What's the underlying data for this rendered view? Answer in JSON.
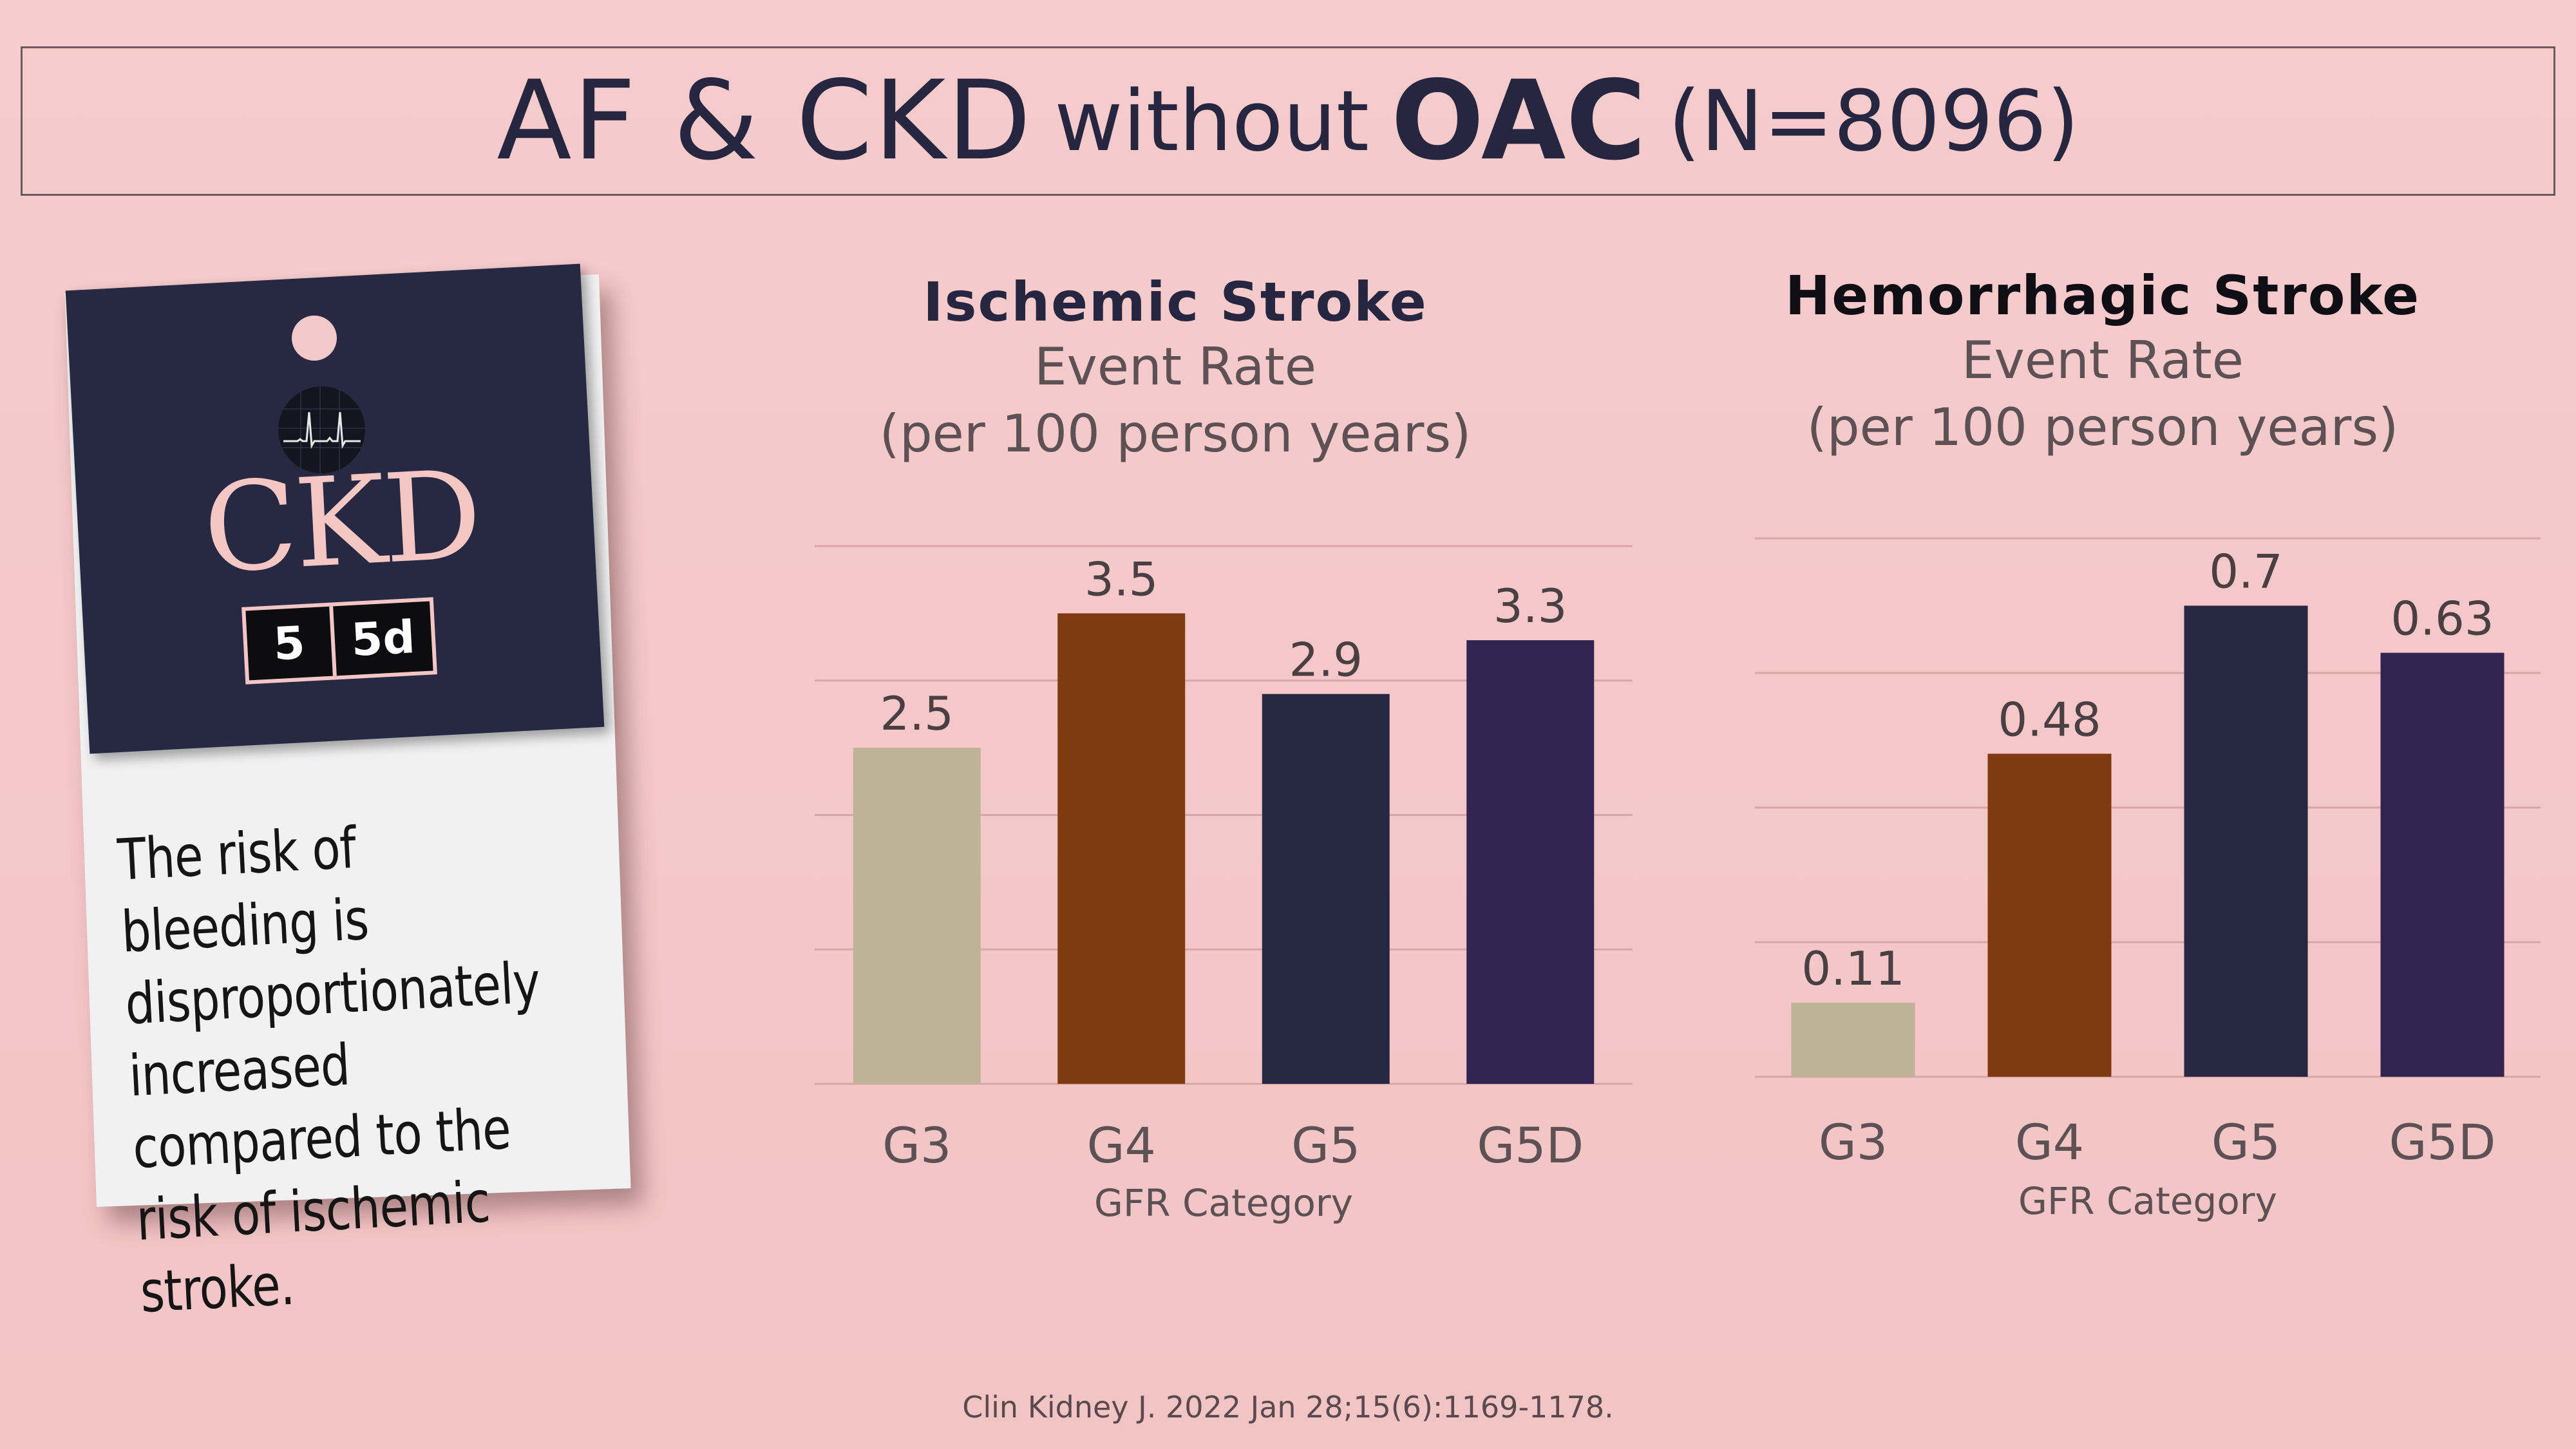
{
  "title": {
    "part1": "AF & CKD",
    "part2": "without",
    "part3": "OAC",
    "part4": "(N=8096)"
  },
  "card": {
    "label": "CKD",
    "stage_a": "5",
    "stage_b": "5d",
    "note": "The risk of bleeding is disproportionately increased compared to the risk of ischemic stroke."
  },
  "charts": [
    {
      "title": "Ischemic Stroke",
      "subtitle1": "Event Rate",
      "subtitle2": "(per 100 person years)"
    },
    {
      "title": "Hemorrhagic Stroke",
      "subtitle1": "Event Rate",
      "subtitle2": "(per 100 person years)"
    }
  ],
  "chart_data": [
    {
      "type": "bar",
      "title": "Ischemic Stroke",
      "ylabel": "Event Rate (per 100 person years)",
      "xlabel": "GFR Category",
      "categories": [
        "G3",
        "G4",
        "G5",
        "G5D"
      ],
      "values": [
        2.5,
        3.5,
        2.9,
        3.3
      ],
      "value_labels": [
        "2.5",
        "3.5",
        "2.9",
        "3.3"
      ],
      "ylim": [
        0,
        4
      ],
      "grid": true,
      "colors": [
        "#bfb397",
        "#803a0f",
        "#262841",
        "#332350"
      ]
    },
    {
      "type": "bar",
      "title": "Hemorrhagic Stroke",
      "ylabel": "Event Rate (per 100 person years)",
      "xlabel": "GFR Category",
      "categories": [
        "G3",
        "G4",
        "G5",
        "G5D"
      ],
      "values": [
        0.11,
        0.48,
        0.7,
        0.63
      ],
      "value_labels": [
        "0.11",
        "0.48",
        "0.7",
        "0.63"
      ],
      "ylim": [
        0,
        0.8
      ],
      "grid": true,
      "colors": [
        "#bfb397",
        "#803a0f",
        "#262841",
        "#332350"
      ]
    }
  ],
  "footer": {
    "citation": "Clin Kidney J. 2022 Jan 28;15(6):1169-1178."
  },
  "colors": {
    "background": "#f3c7c7",
    "navy": "#272842",
    "card_white": "#f1f1f2",
    "grid": "#d7a7a7"
  }
}
